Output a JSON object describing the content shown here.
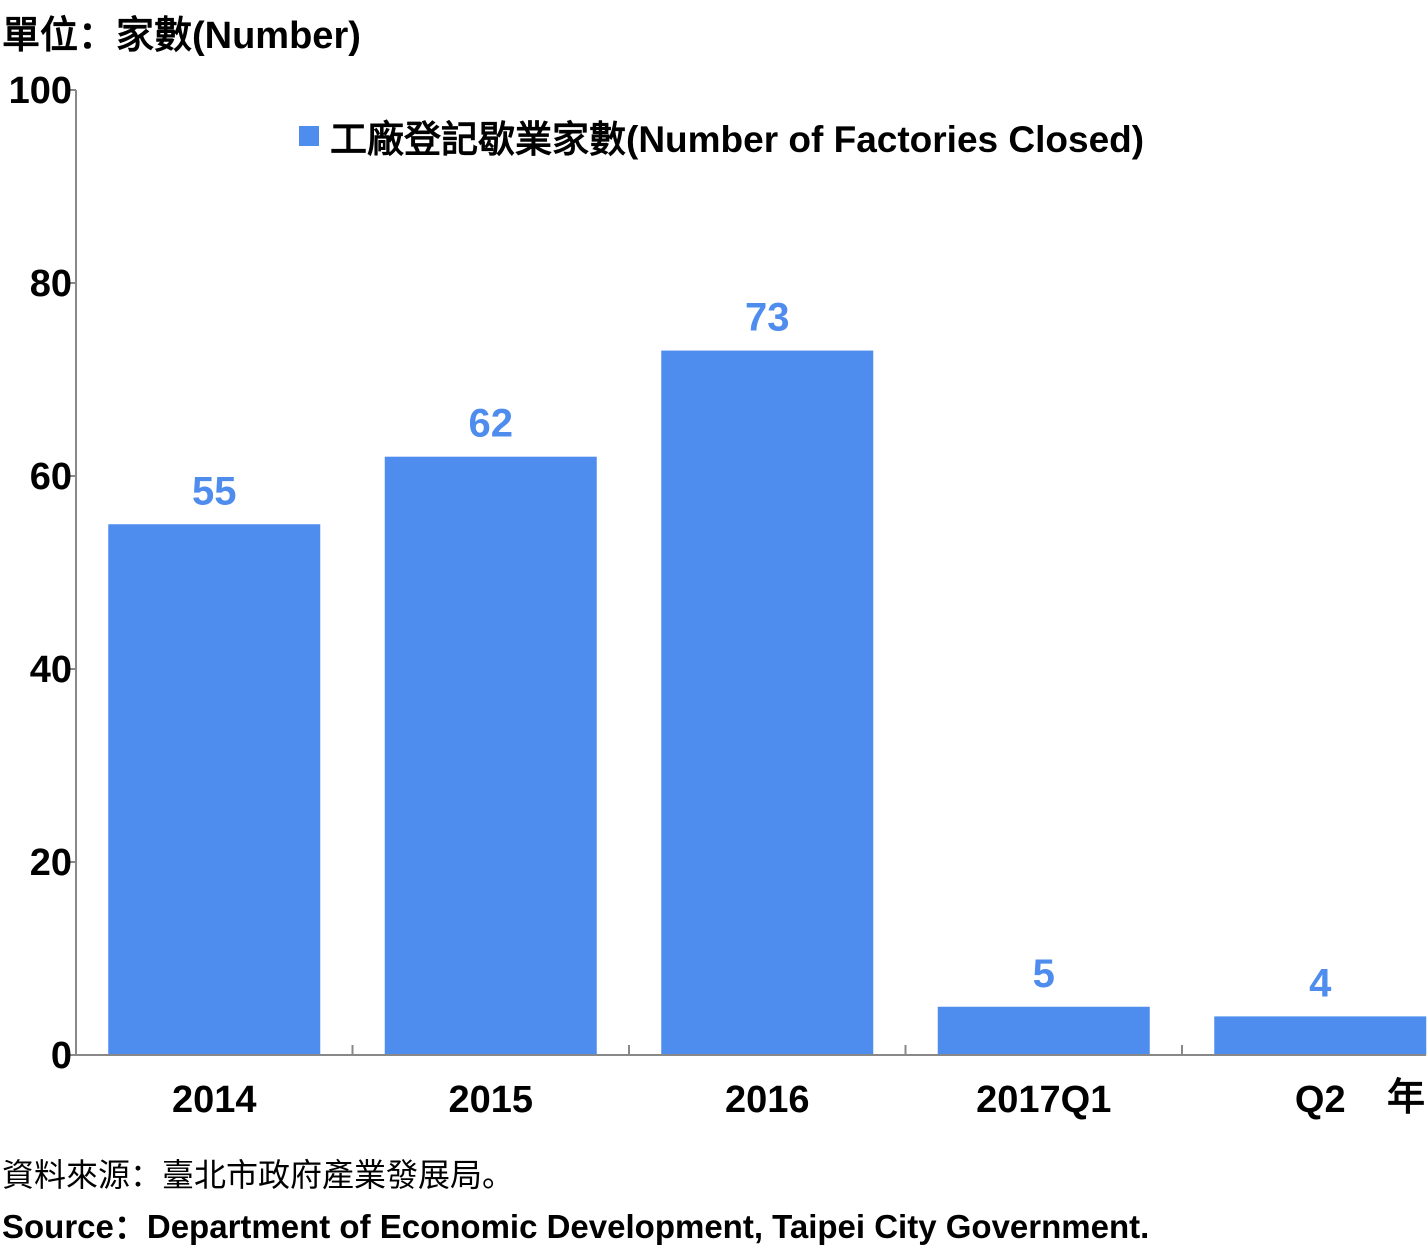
{
  "header": {
    "unit_label": "單位：家數(Number)"
  },
  "chart_data": {
    "type": "bar",
    "categories": [
      "2014",
      "2015",
      "2016",
      "2017Q1",
      "Q2"
    ],
    "x_unit": "年",
    "series": [
      {
        "name": "工廠登記歇業家數(Number of Factories Closed)",
        "values": [
          55,
          62,
          73,
          5,
          4
        ]
      }
    ],
    "data_labels": [
      "55",
      "62",
      "73",
      "5",
      "4"
    ],
    "ylim": [
      0,
      100
    ],
    "yticks": [
      0,
      20,
      40,
      60,
      80,
      100
    ],
    "ytick_labels": [
      "0",
      "20",
      "40",
      "60",
      "80",
      "100"
    ],
    "grid": false,
    "legend_position": "top-right",
    "colors": {
      "bar": "#4e8ced",
      "label": "#4e8ced",
      "axis": "#888888"
    }
  },
  "footer": {
    "source_zh": "資料來源：臺北市政府產業發展局。",
    "source_en": "Source：Department of Economic Development, Taipei City Government."
  }
}
